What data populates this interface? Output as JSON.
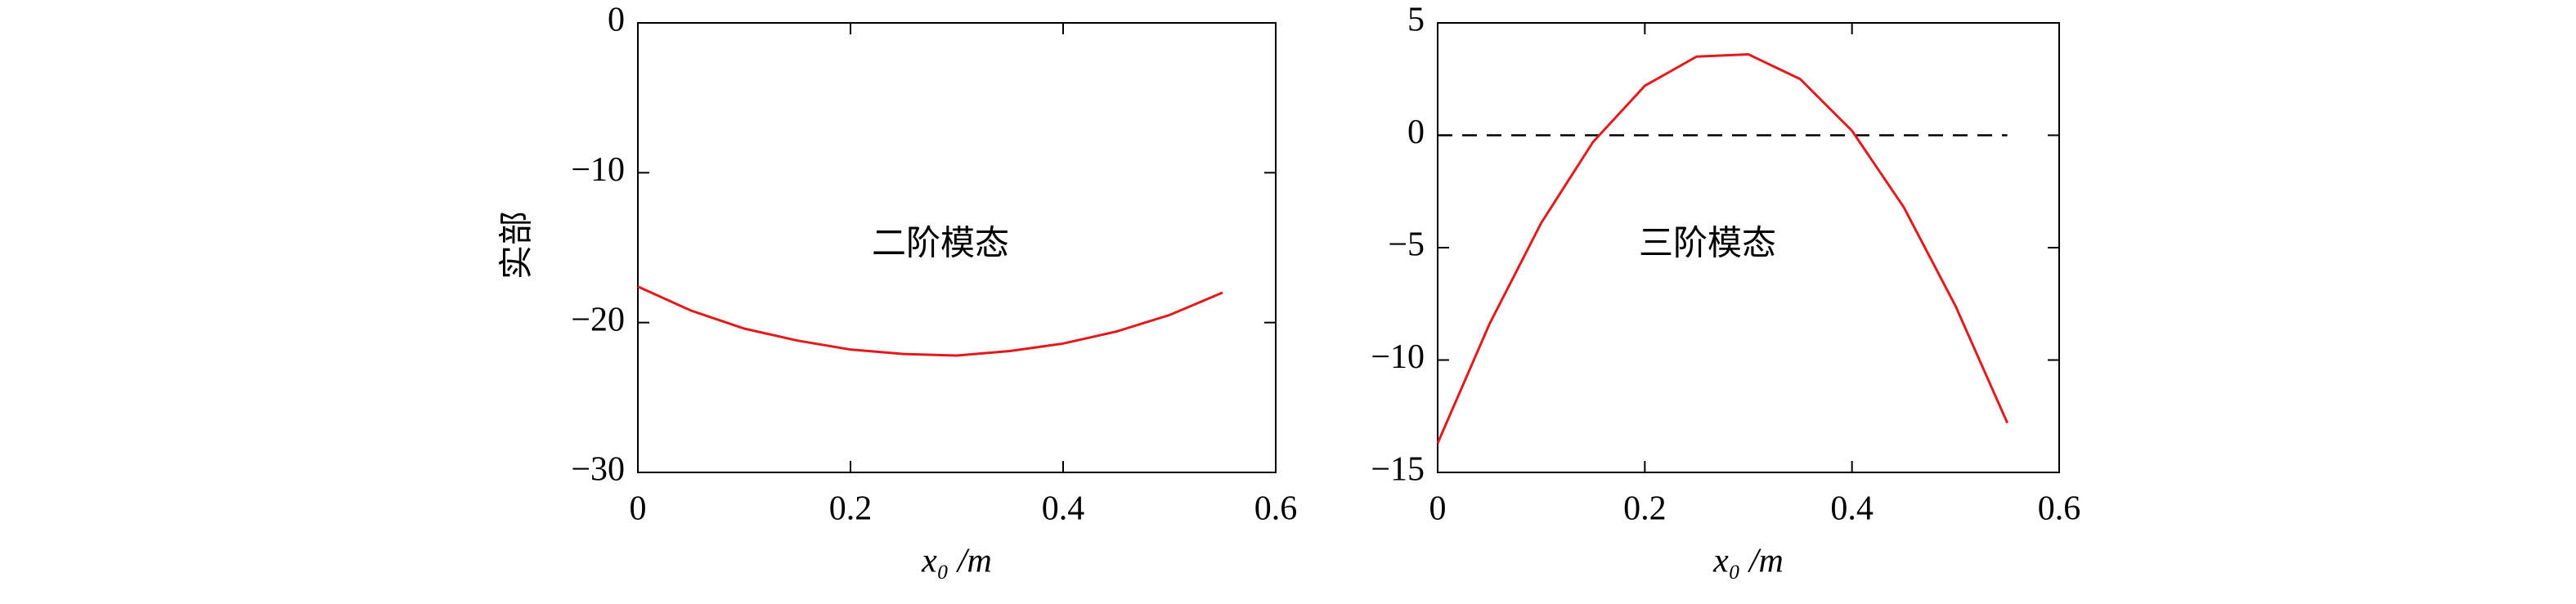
{
  "chart_data": [
    {
      "type": "line",
      "ylabel": "实部",
      "xlabel": "x₀ /m",
      "annotation": "二阶模态",
      "x": [
        0,
        0.05,
        0.1,
        0.15,
        0.2,
        0.25,
        0.3,
        0.35,
        0.4,
        0.45,
        0.5,
        0.55
      ],
      "series": [
        {
          "color": "#e31a1c",
          "values": [
            -17.6,
            -19.2,
            -20.4,
            -21.2,
            -21.8,
            -22.1,
            -22.2,
            -21.9,
            -21.4,
            -20.6,
            -19.5,
            -18.0
          ]
        }
      ],
      "xlim": [
        0,
        0.6
      ],
      "xticks": [
        0,
        0.2,
        0.4,
        0.6
      ],
      "ylim": [
        -30,
        0
      ],
      "yticks": [
        0,
        {
          "value": -10,
          "label": "−10"
        },
        {
          "value": -20,
          "label": "−20"
        },
        {
          "value": -30,
          "label": "−30"
        }
      ]
    },
    {
      "type": "line",
      "xlabel": "x₀ /m",
      "annotation": "三阶模态",
      "hline": 0,
      "x": [
        0,
        0.05,
        0.1,
        0.15,
        0.2,
        0.25,
        0.3,
        0.35,
        0.4,
        0.45,
        0.5,
        0.55
      ],
      "series": [
        {
          "color": "#e31a1c",
          "values": [
            -13.7,
            -8.4,
            -3.9,
            -0.3,
            2.2,
            3.5,
            3.6,
            2.5,
            0.2,
            -3.2,
            -7.6,
            -12.8
          ]
        }
      ],
      "xlim": [
        0,
        0.6
      ],
      "xticks": [
        0,
        0.2,
        0.4,
        0.6
      ],
      "ylim": [
        -15,
        5
      ],
      "yticks": [
        5,
        0,
        {
          "value": -5,
          "label": "−5"
        },
        {
          "value": -10,
          "label": "−10"
        },
        {
          "value": -15,
          "label": "−15"
        }
      ]
    }
  ]
}
